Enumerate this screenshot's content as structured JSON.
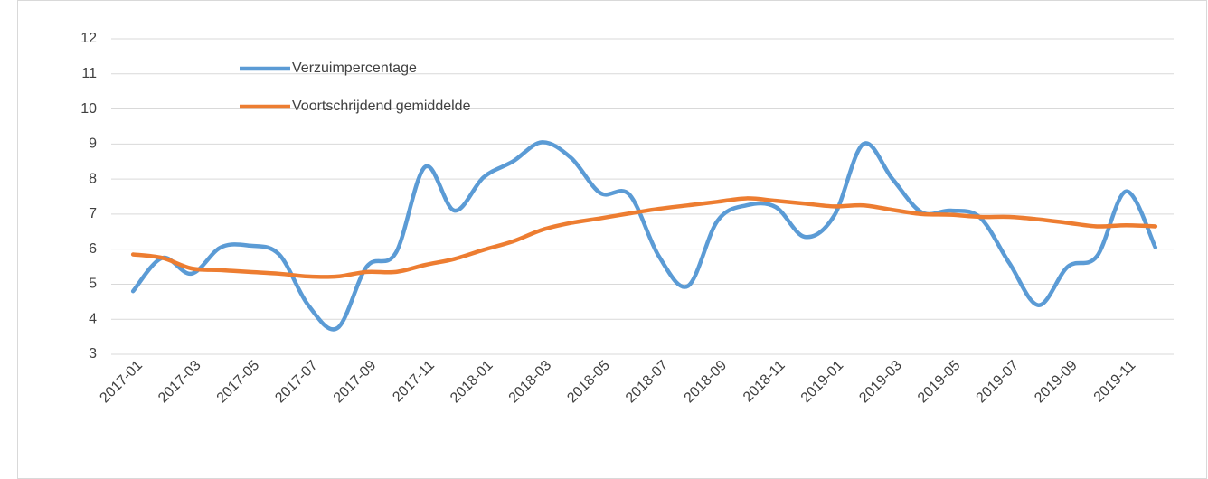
{
  "chart_data": {
    "type": "line",
    "smooth": true,
    "grid": true,
    "legend": "top-left",
    "categories": [
      "2017-01",
      null,
      "2017-03",
      null,
      "2017-05",
      null,
      "2017-07",
      null,
      "2017-09",
      null,
      "2017-11",
      null,
      "2018-01",
      null,
      "2018-03",
      null,
      "2018-05",
      null,
      "2018-07",
      null,
      "2018-09",
      null,
      "2018-11",
      null,
      "2019-01",
      null,
      "2019-03",
      null,
      "2019-05",
      null,
      "2019-07",
      null,
      "2019-09",
      null,
      "2019-11",
      null
    ],
    "series": [
      {
        "name": "Verzuimpercentage",
        "color": "#5b9bd5",
        "values": [
          4.8,
          5.75,
          5.3,
          6.05,
          6.1,
          5.85,
          4.4,
          3.75,
          5.5,
          5.9,
          8.35,
          7.1,
          8.05,
          8.5,
          9.05,
          8.6,
          7.6,
          7.55,
          5.8,
          4.95,
          6.8,
          7.25,
          7.2,
          6.35,
          6.95,
          9.0,
          8.0,
          7.05,
          7.1,
          6.9,
          5.6,
          4.4,
          5.5,
          5.8,
          7.65,
          6.05
        ]
      },
      {
        "name": "Voortschrijdend gemiddelde",
        "color": "#ed7d31",
        "values": [
          5.85,
          5.75,
          5.45,
          5.4,
          5.35,
          5.3,
          5.22,
          5.22,
          5.35,
          5.35,
          5.55,
          5.72,
          5.98,
          6.22,
          6.55,
          6.75,
          6.88,
          7.02,
          7.15,
          7.25,
          7.35,
          7.45,
          7.38,
          7.3,
          7.22,
          7.25,
          7.12,
          7.0,
          6.98,
          6.92,
          6.92,
          6.85,
          6.75,
          6.65,
          6.68,
          6.65
        ]
      }
    ],
    "ylim": [
      3,
      12
    ],
    "yticks": [
      3,
      4,
      5,
      6,
      7,
      8,
      9,
      10,
      11,
      12
    ]
  }
}
